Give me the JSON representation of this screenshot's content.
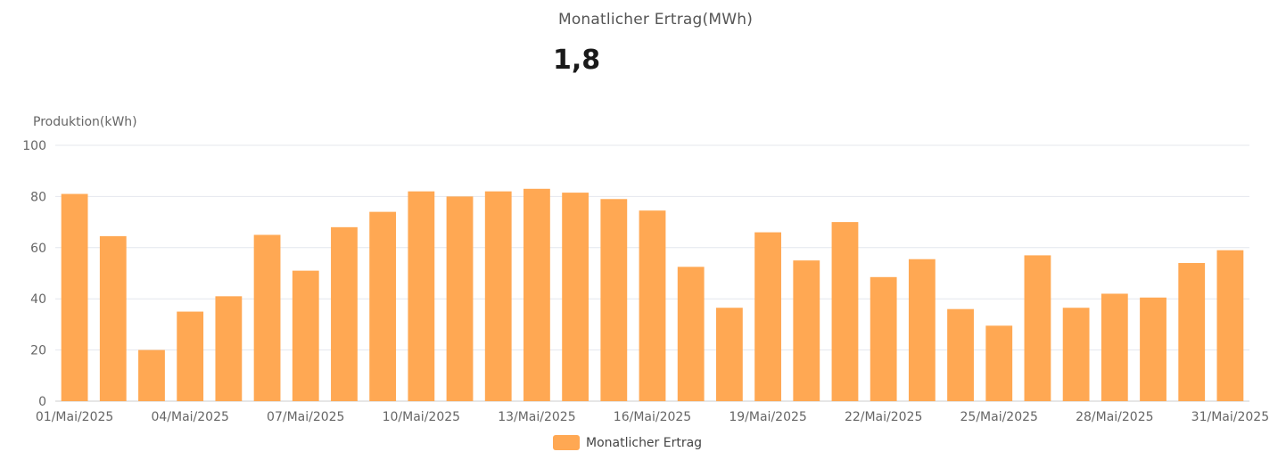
{
  "header": {
    "title": "Monatlicher Ertrag(MWh)",
    "value": "1,8"
  },
  "colors": {
    "bar": "#FFA853",
    "grid": "#E4E7EE",
    "axis": "#CCCCCC"
  },
  "chart_data": {
    "type": "bar",
    "ylabel": "Produktion(kWh)",
    "ylim": [
      0,
      100
    ],
    "yticks": [
      0,
      20,
      40,
      60,
      80,
      100
    ],
    "grid": true,
    "legend_position": "bottom-center",
    "categories": [
      "01/Mai/2025",
      "02/Mai/2025",
      "03/Mai/2025",
      "04/Mai/2025",
      "05/Mai/2025",
      "06/Mai/2025",
      "07/Mai/2025",
      "08/Mai/2025",
      "09/Mai/2025",
      "10/Mai/2025",
      "11/Mai/2025",
      "12/Mai/2025",
      "13/Mai/2025",
      "14/Mai/2025",
      "15/Mai/2025",
      "16/Mai/2025",
      "17/Mai/2025",
      "18/Mai/2025",
      "19/Mai/2025",
      "20/Mai/2025",
      "21/Mai/2025",
      "22/Mai/2025",
      "23/Mai/2025",
      "24/Mai/2025",
      "25/Mai/2025",
      "26/Mai/2025",
      "27/Mai/2025",
      "28/Mai/2025",
      "29/Mai/2025",
      "30/Mai/2025",
      "31/Mai/2025"
    ],
    "visible_tick_labels": [
      "01/Mai/2025",
      "04/Mai/2025",
      "07/Mai/2025",
      "10/Mai/2025",
      "13/Mai/2025",
      "16/Mai/2025",
      "19/Mai/2025",
      "22/Mai/2025",
      "25/Mai/2025",
      "28/Mai/2025",
      "31/Mai/2025"
    ],
    "series": [
      {
        "name": "Monatlicher Ertrag",
        "values": [
          81,
          64.5,
          20,
          35,
          41,
          65,
          51,
          68,
          74,
          82,
          80,
          82,
          83,
          81.5,
          79,
          74.5,
          52.5,
          36.5,
          66,
          55,
          70,
          48.5,
          55.5,
          36,
          29.5,
          57,
          36.5,
          42,
          40.5,
          54,
          59
        ]
      }
    ]
  }
}
